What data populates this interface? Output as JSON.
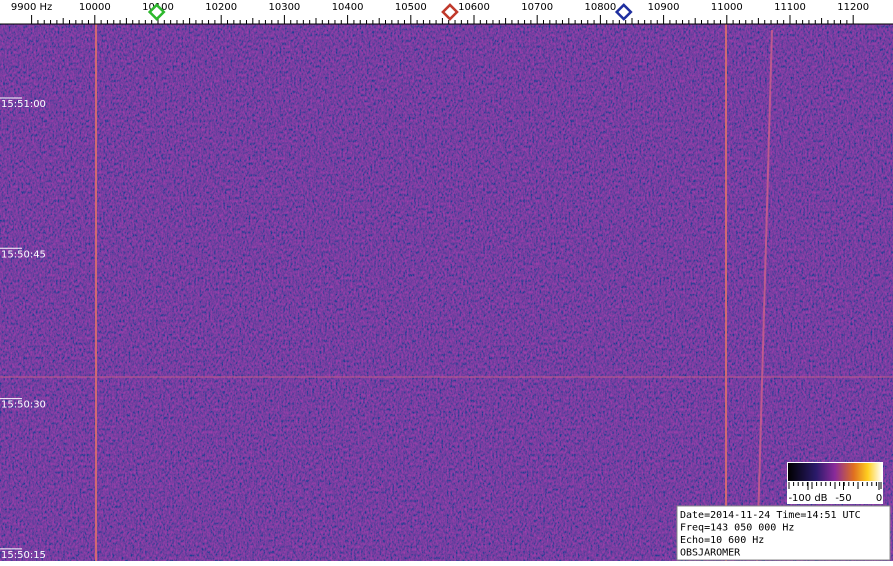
{
  "chart_data": {
    "type": "spectrogram",
    "xlim": [
      9850,
      11263
    ],
    "xticks": [
      {
        "value": 9900,
        "label": "9900 Hz"
      },
      10000,
      10100,
      10200,
      10300,
      10400,
      10500,
      10600,
      10700,
      10800,
      10900,
      11000,
      11100,
      11200
    ],
    "time_labels": [
      "15:51:00",
      "15:50:45",
      "15:50:30",
      "15:50:15"
    ],
    "markers": [
      {
        "value": 10098,
        "color": "#2db82d"
      },
      {
        "value": 10562,
        "color": "#c0392b"
      },
      {
        "value": 10837,
        "color": "#1f2f9f"
      }
    ],
    "colorbar": {
      "lim": [
        -100,
        0
      ],
      "ticks": [
        {
          "value": -100,
          "label": "-100 dB"
        },
        -50,
        0
      ]
    },
    "info": [
      "Date=2014-11-24 Time=14:51 UTC",
      "Freq=143 050 000 Hz",
      "Echo=10 600 Hz",
      "OBSJAROMER"
    ]
  }
}
